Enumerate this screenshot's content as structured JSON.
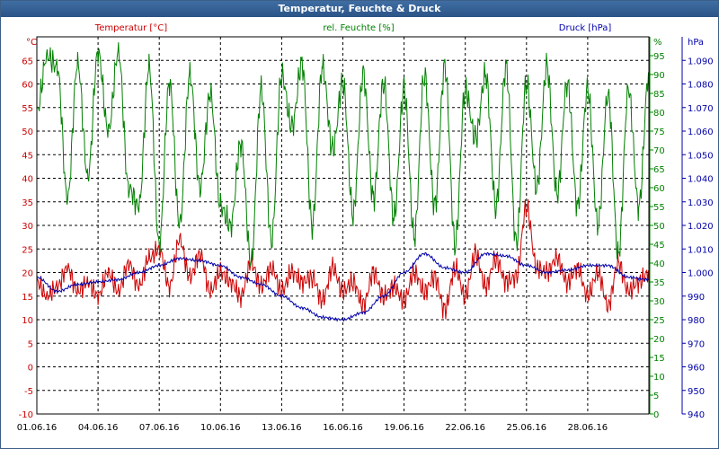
{
  "window_title": "Temperatur, Feuchte & Druck",
  "chart_data": {
    "type": "line",
    "title": "Temperatur, Feuchte & Druck",
    "x_tick_labels": [
      "01.06.16",
      "04.06.16",
      "07.06.16",
      "10.06.16",
      "13.06.16",
      "16.06.16",
      "19.06.16",
      "22.06.16",
      "25.06.16",
      "28.06.16"
    ],
    "x_range_days": [
      0,
      30
    ],
    "grid": true,
    "axes": {
      "left": {
        "label": "Temperatur [°C]",
        "unit": "°C",
        "range": [
          -10,
          70
        ],
        "ticks": [
          "-10",
          "-5",
          "0",
          "5",
          "10",
          "15",
          "20",
          "25",
          "30",
          "35",
          "40",
          "45",
          "50",
          "55",
          "60",
          "65"
        ],
        "color": "#cc0000"
      },
      "right1": {
        "label": "rel. Feuchte [%]",
        "unit": "%",
        "range": [
          0,
          100
        ],
        "ticks": [
          "0",
          "5",
          "10",
          "15",
          "20",
          "25",
          "30",
          "35",
          "40",
          "45",
          "50",
          "55",
          "60",
          "65",
          "70",
          "75",
          "80",
          "85",
          "90",
          "95"
        ],
        "color": "#008000"
      },
      "right2": {
        "label": "Druck [hPa]",
        "unit": "hPa",
        "range": [
          940,
          1100
        ],
        "ticks": [
          "940",
          "950",
          "960",
          "970",
          "980",
          "990",
          "1.000",
          "1.010",
          "1.020",
          "1.030",
          "1.040",
          "1.050",
          "1.060",
          "1.070",
          "1.080",
          "1.090"
        ],
        "color": "#0000aa"
      }
    },
    "series": [
      {
        "name": "Temperatur [°C]",
        "axis": "left",
        "color": "#cc0000",
        "x": [
          0,
          0.5,
          1,
          1.5,
          2,
          2.5,
          3,
          3.5,
          4,
          4.5,
          5,
          5.5,
          6,
          6.5,
          7,
          7.5,
          8,
          8.5,
          9,
          9.5,
          10,
          10.5,
          11,
          11.5,
          12,
          12.5,
          13,
          13.5,
          14,
          14.5,
          15,
          15.5,
          16,
          16.5,
          17,
          17.5,
          18,
          18.5,
          19,
          19.5,
          20,
          20.5,
          21,
          21.5,
          22,
          22.5,
          23,
          23.5,
          24,
          24.5,
          25,
          25.5,
          26,
          26.5,
          27,
          27.5,
          28,
          28.5,
          29,
          29.5,
          30
        ],
        "values": [
          18,
          15,
          17,
          21,
          16,
          18,
          15,
          20,
          16,
          22,
          17,
          23,
          25,
          17,
          27,
          19,
          24,
          16,
          20,
          18,
          15,
          22,
          17,
          21,
          16,
          20,
          18,
          19,
          14,
          21,
          16,
          18,
          13,
          20,
          15,
          17,
          14,
          20,
          16,
          19,
          12,
          21,
          15,
          24,
          17,
          23,
          18,
          19,
          34,
          21,
          20,
          23,
          18,
          21,
          15,
          20,
          13,
          22,
          16,
          18,
          20
        ],
        "hourly_fluct": 2.5
      },
      {
        "name": "rel. Feuchte [%]",
        "axis": "right1",
        "color": "#008000",
        "x": [
          0,
          0.5,
          1,
          1.5,
          2,
          2.5,
          3,
          3.5,
          4,
          4.5,
          5,
          5.5,
          6,
          6.5,
          7,
          7.5,
          8,
          8.5,
          9,
          9.5,
          10,
          10.5,
          11,
          11.5,
          12,
          12.5,
          13,
          13.5,
          14,
          14.5,
          15,
          15.5,
          16,
          16.5,
          17,
          17.5,
          18,
          18.5,
          19,
          19.5,
          20,
          20.5,
          21,
          21.5,
          22,
          22.5,
          23,
          23.5,
          24,
          24.5,
          25,
          25.5,
          26,
          26.5,
          27,
          27.5,
          28,
          28.5,
          29,
          29.5,
          30
        ],
        "values": [
          80,
          95,
          92,
          57,
          93,
          63,
          96,
          75,
          96,
          60,
          55,
          92,
          45,
          88,
          50,
          90,
          60,
          85,
          55,
          50,
          72,
          40,
          86,
          46,
          90,
          76,
          93,
          50,
          92,
          70,
          88,
          53,
          90,
          57,
          88,
          52,
          86,
          47,
          90,
          55,
          92,
          45,
          86,
          73,
          90,
          55,
          92,
          45,
          88,
          60,
          92,
          58,
          88,
          55,
          86,
          50,
          85,
          42,
          86,
          55,
          90
        ],
        "hourly_fluct": 4
      },
      {
        "name": "Druck [hPa]",
        "axis": "right2",
        "color": "#0000aa",
        "x": [
          0,
          1,
          2,
          3,
          4,
          5,
          6,
          7,
          8,
          9,
          10,
          11,
          12,
          13,
          14,
          15,
          16,
          17,
          18,
          19,
          20,
          21,
          22,
          23,
          24,
          25,
          26,
          27,
          28,
          29,
          30
        ],
        "values": [
          998,
          992,
          995,
          996,
          997,
          1000,
          1003,
          1006,
          1005,
          1003,
          998,
          995,
          990,
          985,
          981,
          980,
          983,
          990,
          1000,
          1008,
          1002,
          1000,
          1008,
          1007,
          1003,
          1000,
          1001,
          1003,
          1003,
          998,
          997
        ],
        "hourly_fluct": 0.7
      }
    ]
  }
}
